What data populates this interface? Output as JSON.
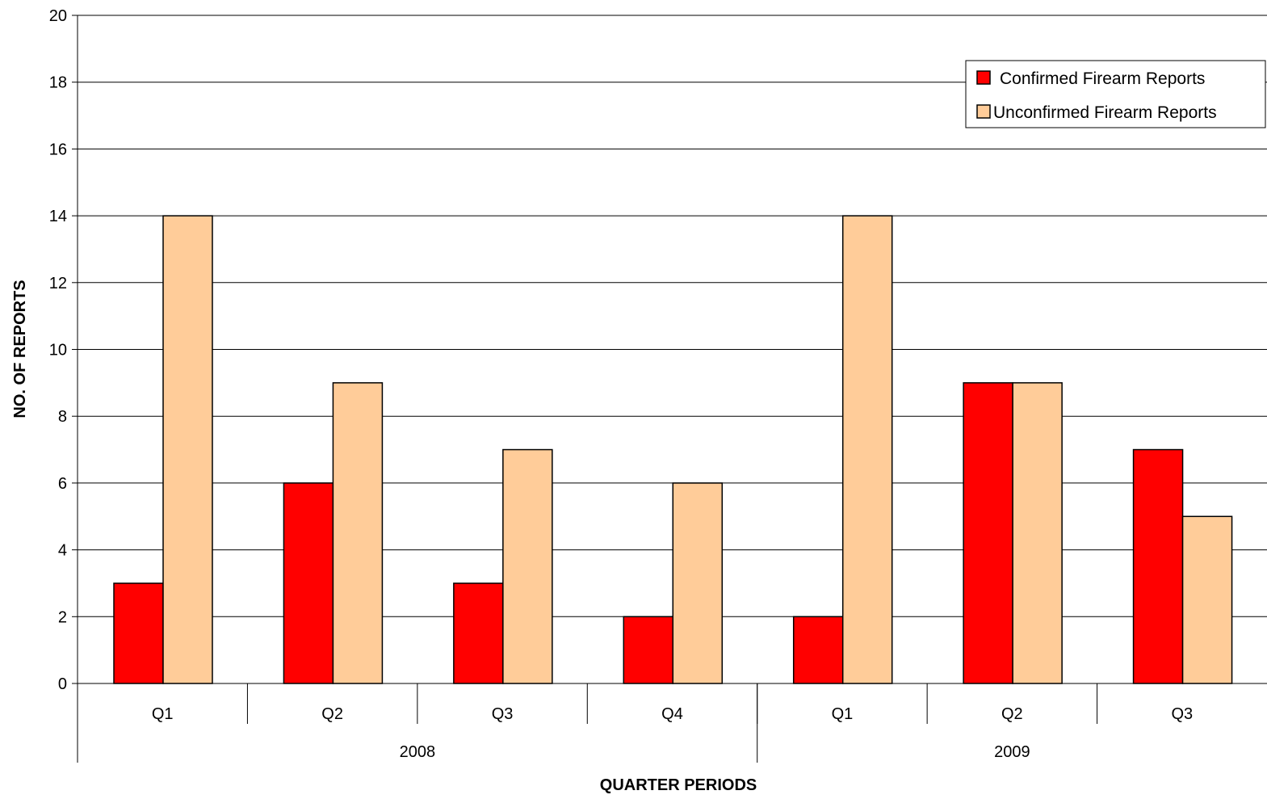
{
  "chart_data": {
    "type": "bar",
    "categories": [
      {
        "quarter": "Q1",
        "year": "2008"
      },
      {
        "quarter": "Q2",
        "year": "2008"
      },
      {
        "quarter": "Q3",
        "year": "2008"
      },
      {
        "quarter": "Q4",
        "year": "2008"
      },
      {
        "quarter": "Q1",
        "year": "2009"
      },
      {
        "quarter": "Q2",
        "year": "2009"
      },
      {
        "quarter": "Q3",
        "year": "2009"
      }
    ],
    "year_groups": [
      {
        "label": "2008",
        "count": 4
      },
      {
        "label": "2009",
        "count": 3
      }
    ],
    "series": [
      {
        "name": "Confirmed Firearm Reports",
        "color": "#ff0000",
        "values": [
          3,
          6,
          3,
          2,
          2,
          9,
          7
        ]
      },
      {
        "name": "Unconfirmed Firearm Reports",
        "color": "#ffcc99",
        "values": [
          14,
          9,
          7,
          6,
          14,
          9,
          5
        ]
      }
    ],
    "xlabel": "QUARTER PERIODS",
    "ylabel": "NO. OF REPORTS",
    "ylim": [
      0,
      20
    ],
    "yticks": [
      0,
      2,
      4,
      6,
      8,
      10,
      12,
      14,
      16,
      18,
      20
    ],
    "grid": true,
    "legend_position": "top-right"
  }
}
